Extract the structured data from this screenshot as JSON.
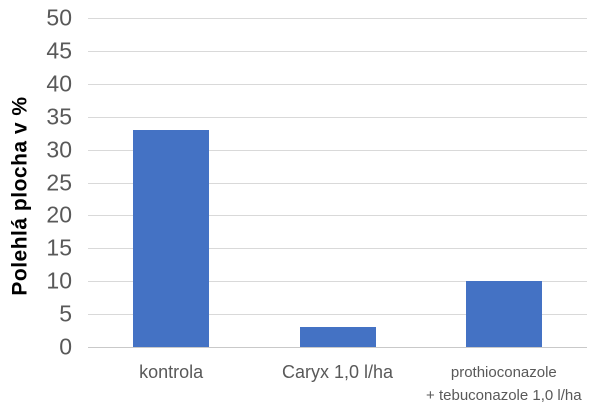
{
  "chart_data": {
    "type": "bar",
    "title": "",
    "xlabel": "",
    "ylabel": "Polehlá plocha v %",
    "categories": [
      "kontrola",
      "Caryx 1,0 l/ha",
      "prothioconazole\n+ tebuconazole 1,0 l/ha"
    ],
    "values": [
      33,
      3,
      10
    ],
    "ylim": [
      0,
      50
    ],
    "yticks": [
      0,
      5,
      10,
      15,
      20,
      25,
      30,
      35,
      40,
      45,
      50
    ],
    "grid": true,
    "legend_position": "none",
    "colors": {
      "bar": "#4472C4",
      "gridline": "#D9D9D9",
      "axis_line": "#C9C9C9",
      "tick_label": "#595959",
      "category_label": "#595959",
      "axis_title": "#000000"
    }
  }
}
